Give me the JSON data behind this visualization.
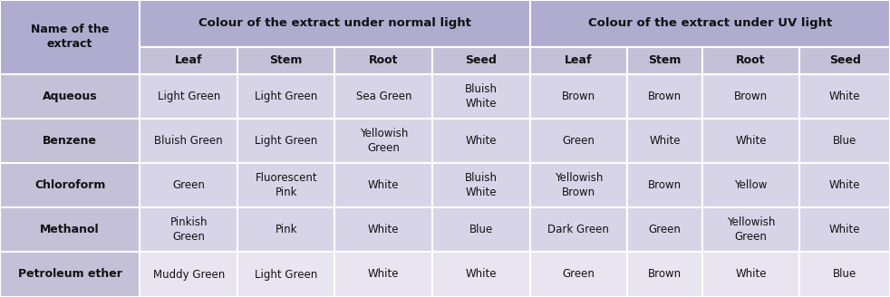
{
  "header_bg": "#b0acd0",
  "subheader_bg": "#c4c0d8",
  "data_bg": "#d8d4e8",
  "col0_bg": "#c4c0d8",
  "last_row_bg": "#e8e4f0",
  "border_color": "#ffffff",
  "text_color": "#111111",
  "col_props": [
    0.155,
    0.108,
    0.108,
    0.108,
    0.108,
    0.108,
    0.083,
    0.108,
    0.1
  ],
  "headers_row2": [
    "",
    "Leaf",
    "Stem",
    "Root",
    "Seed",
    "Leaf",
    "Stem",
    "Root",
    "Seed"
  ],
  "rows": [
    [
      "Aqueous",
      "Light Green",
      "Light Green",
      "Sea Green",
      "Bluish\nWhite",
      "Brown",
      "Brown",
      "Brown",
      "White"
    ],
    [
      "Benzene",
      "Bluish Green",
      "Light Green",
      "Yellowish\nGreen",
      "White",
      "Green",
      "White",
      "White",
      "Blue"
    ],
    [
      "Chloroform",
      "Green",
      "Fluorescent\nPink",
      "White",
      "Bluish\nWhite",
      "Yellowish\nBrown",
      "Brown",
      "Yellow",
      "White"
    ],
    [
      "Methanol",
      "Pinkish\nGreen",
      "Pink",
      "White",
      "Blue",
      "Dark Green",
      "Green",
      "Yellowish\nGreen",
      "White"
    ],
    [
      "Petroleum ether",
      "Muddy Green",
      "Light Green",
      "White",
      "White",
      "Green",
      "Brown",
      "White",
      "Blue"
    ]
  ],
  "header1_text_normal": "Colour of the extract under normal light",
  "header1_text_uv": "Colour of the extract under UV light",
  "col0_header": "Name of the\nextract",
  "header1_fontsize": 9.5,
  "header2_fontsize": 9.0,
  "data_fontsize": 8.5,
  "col0_fontsize": 9.0
}
